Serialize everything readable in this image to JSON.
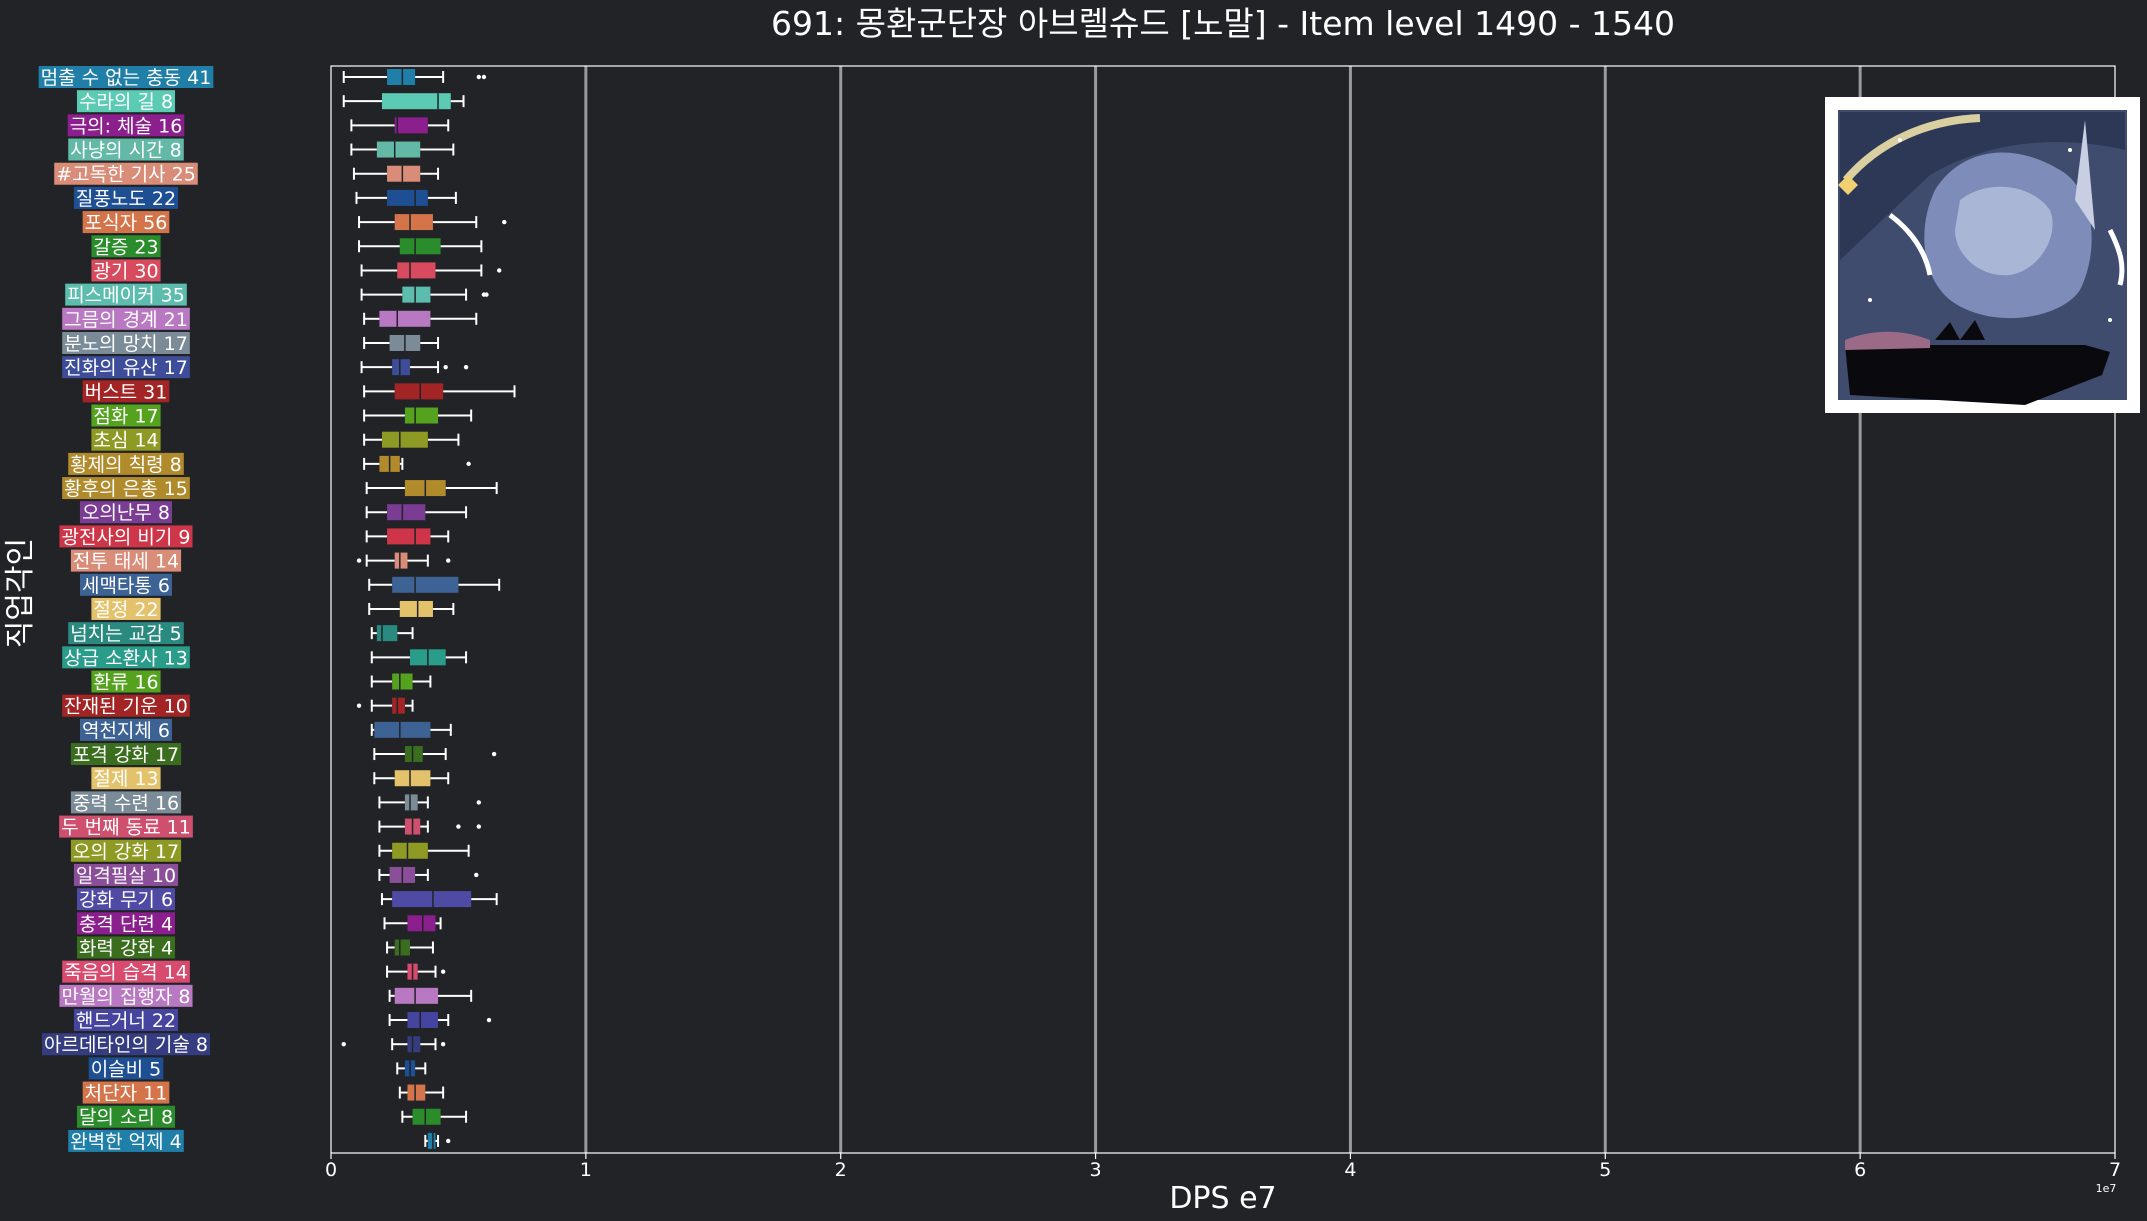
{
  "chart_data": {
    "type": "box",
    "title": "691: 몽환군단장 아브렐슈드 [노말] - Item level 1490 - 1540",
    "xlabel": "DPS e7",
    "ylabel": "직업각인",
    "offset_label": "1e7",
    "xlim": [
      0,
      7
    ],
    "xticks": [
      0,
      1,
      2,
      3,
      4,
      5,
      6,
      7
    ],
    "grid": true,
    "plot_bg": "#212327",
    "axis_color": "#ffffff",
    "grid_color": "#9a9a9a",
    "categories": [
      {
        "label": "멈출 수 없는 충동 41",
        "color": "#1f7fa8",
        "whisker": [
          0.05,
          0.44
        ],
        "box": [
          0.22,
          0.33
        ],
        "median": 0.28,
        "outliers": [
          0.58,
          0.6
        ]
      },
      {
        "label": "수라의 길 8",
        "color": "#5ccbb4",
        "whisker": [
          0.05,
          0.52
        ],
        "box": [
          0.2,
          0.47
        ],
        "median": 0.42,
        "outliers": []
      },
      {
        "label": "극의: 체술 16",
        "color": "#8b1f8d",
        "whisker": [
          0.08,
          0.46
        ],
        "box": [
          0.25,
          0.38
        ],
        "median": 0.26,
        "outliers": []
      },
      {
        "label": "사냥의 시간 8",
        "color": "#63b8a6",
        "whisker": [
          0.08,
          0.48
        ],
        "box": [
          0.18,
          0.35
        ],
        "median": 0.25,
        "outliers": []
      },
      {
        "label": "#고독한 기사 25",
        "color": "#d98d78",
        "whisker": [
          0.09,
          0.42
        ],
        "box": [
          0.22,
          0.35
        ],
        "median": 0.28,
        "outliers": []
      },
      {
        "label": "질풍노도 22",
        "color": "#1f4f93",
        "whisker": [
          0.1,
          0.49
        ],
        "box": [
          0.22,
          0.38
        ],
        "median": 0.33,
        "outliers": []
      },
      {
        "label": "포식자 56",
        "color": "#d4744b",
        "whisker": [
          0.11,
          0.57
        ],
        "box": [
          0.25,
          0.4
        ],
        "median": 0.31,
        "outliers": [
          0.68
        ]
      },
      {
        "label": "갈증 23",
        "color": "#2b8c2b",
        "whisker": [
          0.11,
          0.59
        ],
        "box": [
          0.27,
          0.43
        ],
        "median": 0.33,
        "outliers": []
      },
      {
        "label": "광기 30",
        "color": "#d84a5d",
        "whisker": [
          0.12,
          0.59
        ],
        "box": [
          0.26,
          0.41
        ],
        "median": 0.31,
        "outliers": [
          0.66
        ]
      },
      {
        "label": "피스메이커 35",
        "color": "#5cbcad",
        "whisker": [
          0.12,
          0.53
        ],
        "box": [
          0.28,
          0.39
        ],
        "median": 0.33,
        "outliers": [
          0.6,
          0.61
        ]
      },
      {
        "label": "그믐의 경계 21",
        "color": "#b978c2",
        "whisker": [
          0.13,
          0.57
        ],
        "box": [
          0.19,
          0.39
        ],
        "median": 0.26,
        "outliers": []
      },
      {
        "label": "분노의 망치 17",
        "color": "#7b8c98",
        "whisker": [
          0.13,
          0.42
        ],
        "box": [
          0.23,
          0.35
        ],
        "median": 0.29,
        "outliers": []
      },
      {
        "label": "진화의 유산 17",
        "color": "#3d4d9a",
        "whisker": [
          0.12,
          0.42
        ],
        "box": [
          0.24,
          0.31
        ],
        "median": 0.27,
        "outliers": [
          0.45,
          0.53
        ]
      },
      {
        "label": "버스트 31",
        "color": "#a32424",
        "whisker": [
          0.13,
          0.72
        ],
        "box": [
          0.25,
          0.44
        ],
        "median": 0.35,
        "outliers": []
      },
      {
        "label": "점화 17",
        "color": "#55a21f",
        "whisker": [
          0.13,
          0.55
        ],
        "box": [
          0.29,
          0.42
        ],
        "median": 0.33,
        "outliers": []
      },
      {
        "label": "초심 14",
        "color": "#8e9a23",
        "whisker": [
          0.13,
          0.5
        ],
        "box": [
          0.2,
          0.38
        ],
        "median": 0.27,
        "outliers": []
      },
      {
        "label": "황제의 칙령 8",
        "color": "#b08a2b",
        "whisker": [
          0.13,
          0.28
        ],
        "box": [
          0.19,
          0.27
        ],
        "median": 0.23,
        "outliers": [
          0.54
        ]
      },
      {
        "label": "황후의 은총 15",
        "color": "#b08a2b",
        "whisker": [
          0.14,
          0.65
        ],
        "box": [
          0.29,
          0.45
        ],
        "median": 0.37,
        "outliers": []
      },
      {
        "label": "오의난무 8",
        "color": "#7b3d93",
        "whisker": [
          0.14,
          0.53
        ],
        "box": [
          0.22,
          0.37
        ],
        "median": 0.28,
        "outliers": []
      },
      {
        "label": "광전사의 비기 9",
        "color": "#cf3548",
        "whisker": [
          0.14,
          0.46
        ],
        "box": [
          0.22,
          0.39
        ],
        "median": 0.33,
        "outliers": []
      },
      {
        "label": "전투 태세 14",
        "color": "#d98d78",
        "whisker": [
          0.14,
          0.38
        ],
        "box": [
          0.25,
          0.3
        ],
        "median": 0.27,
        "outliers": [
          0.11,
          0.46
        ]
      },
      {
        "label": "세맥타통 6",
        "color": "#3d6294",
        "whisker": [
          0.15,
          0.66
        ],
        "box": [
          0.24,
          0.5
        ],
        "median": 0.33,
        "outliers": []
      },
      {
        "label": "절정 22",
        "color": "#e4c26b",
        "whisker": [
          0.15,
          0.48
        ],
        "box": [
          0.27,
          0.4
        ],
        "median": 0.34,
        "outliers": []
      },
      {
        "label": "넘치는 교감 5",
        "color": "#2a8a80",
        "whisker": [
          0.16,
          0.32
        ],
        "box": [
          0.18,
          0.26
        ],
        "median": 0.2,
        "outliers": []
      },
      {
        "label": "상급 소환사 13",
        "color": "#2a9d8a",
        "whisker": [
          0.16,
          0.53
        ],
        "box": [
          0.31,
          0.45
        ],
        "median": 0.38,
        "outliers": []
      },
      {
        "label": "환류 16",
        "color": "#55a21f",
        "whisker": [
          0.16,
          0.39
        ],
        "box": [
          0.24,
          0.32
        ],
        "median": 0.27,
        "outliers": []
      },
      {
        "label": "잔재된 기운 10",
        "color": "#a32424",
        "whisker": [
          0.16,
          0.32
        ],
        "box": [
          0.24,
          0.29
        ],
        "median": 0.26,
        "outliers": [
          0.11
        ]
      },
      {
        "label": "역천지체 6",
        "color": "#3d6294",
        "whisker": [
          0.16,
          0.47
        ],
        "box": [
          0.17,
          0.39
        ],
        "median": 0.27,
        "outliers": []
      },
      {
        "label": "포격 강화 17",
        "color": "#3a6e1e",
        "whisker": [
          0.17,
          0.45
        ],
        "box": [
          0.29,
          0.36
        ],
        "median": 0.32,
        "outliers": [
          0.64
        ]
      },
      {
        "label": "절제 13",
        "color": "#e4c26b",
        "whisker": [
          0.17,
          0.46
        ],
        "box": [
          0.25,
          0.39
        ],
        "median": 0.31,
        "outliers": []
      },
      {
        "label": "중력 수련 16",
        "color": "#7b8c98",
        "whisker": [
          0.19,
          0.38
        ],
        "box": [
          0.29,
          0.34
        ],
        "median": 0.31,
        "outliers": [
          0.58
        ]
      },
      {
        "label": "두 번째 동료 11",
        "color": "#cf4f6e",
        "whisker": [
          0.19,
          0.38
        ],
        "box": [
          0.29,
          0.35
        ],
        "median": 0.32,
        "outliers": [
          0.5,
          0.58
        ]
      },
      {
        "label": "오의 강화 17",
        "color": "#8e9a23",
        "whisker": [
          0.19,
          0.54
        ],
        "box": [
          0.24,
          0.38
        ],
        "median": 0.3,
        "outliers": []
      },
      {
        "label": "일격필살 10",
        "color": "#8b4f9a",
        "whisker": [
          0.19,
          0.38
        ],
        "box": [
          0.23,
          0.33
        ],
        "median": 0.28,
        "outliers": [
          0.57
        ]
      },
      {
        "label": "강화 무기 6",
        "color": "#4f4aa3",
        "whisker": [
          0.2,
          0.65
        ],
        "box": [
          0.24,
          0.55
        ],
        "median": 0.4,
        "outliers": []
      },
      {
        "label": "충격 단련 4",
        "color": "#8b1f8d",
        "whisker": [
          0.21,
          0.43
        ],
        "box": [
          0.3,
          0.41
        ],
        "median": 0.36,
        "outliers": []
      },
      {
        "label": "화력 강화 4",
        "color": "#3a6e1e",
        "whisker": [
          0.22,
          0.4
        ],
        "box": [
          0.25,
          0.31
        ],
        "median": 0.27,
        "outliers": []
      },
      {
        "label": "죽음의 습격 14",
        "color": "#d84a6e",
        "whisker": [
          0.22,
          0.41
        ],
        "box": [
          0.3,
          0.34
        ],
        "median": 0.32,
        "outliers": [
          0.44
        ]
      },
      {
        "label": "만월의 집행자 8",
        "color": "#b978c2",
        "whisker": [
          0.23,
          0.55
        ],
        "box": [
          0.25,
          0.42
        ],
        "median": 0.33,
        "outliers": []
      },
      {
        "label": "핸드거너 22",
        "color": "#4545a0",
        "whisker": [
          0.23,
          0.46
        ],
        "box": [
          0.3,
          0.42
        ],
        "median": 0.35,
        "outliers": [
          0.62
        ]
      },
      {
        "label": "아르데타인의 기술 8",
        "color": "#353d80",
        "whisker": [
          0.24,
          0.41
        ],
        "box": [
          0.3,
          0.35
        ],
        "median": 0.32,
        "outliers": [
          0.05,
          0.44
        ]
      },
      {
        "label": "이슬비 5",
        "color": "#1f4f93",
        "whisker": [
          0.26,
          0.37
        ],
        "box": [
          0.29,
          0.33
        ],
        "median": 0.31,
        "outliers": []
      },
      {
        "label": "처단자 11",
        "color": "#d4744b",
        "whisker": [
          0.27,
          0.44
        ],
        "box": [
          0.3,
          0.37
        ],
        "median": 0.33,
        "outliers": []
      },
      {
        "label": "달의 소리 8",
        "color": "#2b8c2b",
        "whisker": [
          0.28,
          0.53
        ],
        "box": [
          0.32,
          0.43
        ],
        "median": 0.37,
        "outliers": []
      },
      {
        "label": "완벽한 억제 4",
        "color": "#1f7fa8",
        "whisker": [
          0.37,
          0.42
        ],
        "box": [
          0.38,
          0.41
        ],
        "median": 0.4,
        "outliers": [
          0.46
        ]
      }
    ]
  }
}
